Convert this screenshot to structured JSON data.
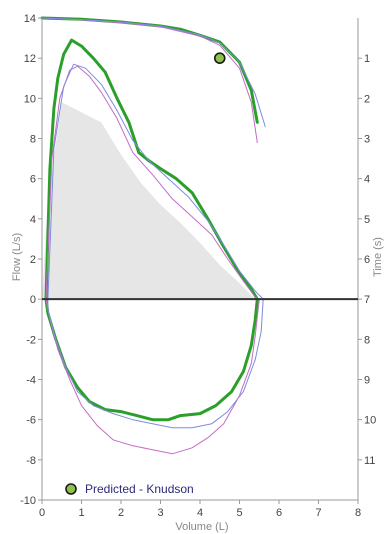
{
  "chart_data": {
    "type": "line",
    "title": "",
    "xlabel": "Volume (L)",
    "ylabel": "Flow (L/s)",
    "y2label": "Time (s)",
    "xlim": [
      0,
      8
    ],
    "ylim": [
      -10,
      14
    ],
    "y2lim": [
      0,
      11
    ],
    "x_ticks": [
      "0",
      "1",
      "2",
      "3",
      "4",
      "5",
      "6",
      "7",
      "8"
    ],
    "y_ticks": [
      "-10",
      "-8",
      "-6",
      "-4",
      "-2",
      "0",
      "2",
      "4",
      "6",
      "8",
      "10",
      "12",
      "14"
    ],
    "y2_ticks": [
      "1",
      "2",
      "3",
      "4",
      "5",
      "6",
      "7",
      "8",
      "9",
      "10",
      "11"
    ],
    "grid": false,
    "legend": {
      "position": "bottom-left",
      "entries": [
        {
          "label": "Predicted - Knudson",
          "color": "#8fc24a"
        }
      ]
    },
    "predicted_area": {
      "color": "#e6e6e6",
      "points": [
        [
          0.0,
          0.0
        ],
        [
          0.15,
          5.0
        ],
        [
          0.5,
          9.8
        ],
        [
          1.0,
          9.3
        ],
        [
          1.5,
          8.8
        ],
        [
          2.0,
          7.2
        ],
        [
          2.5,
          5.8
        ],
        [
          3.0,
          4.7
        ],
        [
          3.5,
          3.8
        ],
        [
          4.0,
          2.8
        ],
        [
          4.5,
          1.7
        ],
        [
          5.0,
          0.8
        ],
        [
          5.4,
          0.0
        ]
      ]
    },
    "predicted_point": {
      "x": 4.5,
      "y": 12.0,
      "color": "#8fc24a"
    },
    "series": [
      {
        "color": "#2aa02a",
        "width": 3,
        "points": [
          [
            0.1,
            0.0
          ],
          [
            0.2,
            6.5
          ],
          [
            0.3,
            9.5
          ],
          [
            0.4,
            11.0
          ],
          [
            0.55,
            12.2
          ],
          [
            0.75,
            12.9
          ],
          [
            1.0,
            12.6
          ],
          [
            1.3,
            12.0
          ],
          [
            1.6,
            11.3
          ],
          [
            1.9,
            10.0
          ],
          [
            2.2,
            8.8
          ],
          [
            2.45,
            7.3
          ],
          [
            2.7,
            6.9
          ],
          [
            3.0,
            6.5
          ],
          [
            3.4,
            6.0
          ],
          [
            3.8,
            5.3
          ],
          [
            4.2,
            4.0
          ],
          [
            4.6,
            2.6
          ],
          [
            5.0,
            1.3
          ],
          [
            5.3,
            0.5
          ],
          [
            5.45,
            0.0
          ],
          [
            5.4,
            -1.0
          ],
          [
            5.3,
            -2.3
          ],
          [
            5.1,
            -3.6
          ],
          [
            4.8,
            -4.6
          ],
          [
            4.4,
            -5.3
          ],
          [
            4.0,
            -5.7
          ],
          [
            3.5,
            -5.8
          ],
          [
            3.2,
            -6.0
          ],
          [
            2.8,
            -6.0
          ],
          [
            2.4,
            -5.8
          ],
          [
            2.0,
            -5.6
          ],
          [
            1.6,
            -5.5
          ],
          [
            1.2,
            -5.1
          ],
          [
            0.9,
            -4.4
          ],
          [
            0.6,
            -3.4
          ],
          [
            0.35,
            -2.0
          ],
          [
            0.15,
            -0.7
          ],
          [
            0.1,
            0.0
          ]
        ]
      },
      {
        "color": "#c46cc4",
        "width": 1,
        "points": [
          [
            0.1,
            0.0
          ],
          [
            0.25,
            7.0
          ],
          [
            0.45,
            10.0
          ],
          [
            0.7,
            11.4
          ],
          [
            0.9,
            11.6
          ],
          [
            1.2,
            11.1
          ],
          [
            1.5,
            10.3
          ],
          [
            1.9,
            9.0
          ],
          [
            2.3,
            7.3
          ],
          [
            2.8,
            6.2
          ],
          [
            3.3,
            5.0
          ],
          [
            3.8,
            4.1
          ],
          [
            4.3,
            3.2
          ],
          [
            4.7,
            2.0
          ],
          [
            5.1,
            0.9
          ],
          [
            5.4,
            0.1
          ],
          [
            5.5,
            0.0
          ],
          [
            5.4,
            -1.8
          ],
          [
            5.3,
            -3.2
          ],
          [
            5.0,
            -4.8
          ],
          [
            4.6,
            -6.2
          ],
          [
            4.2,
            -6.9
          ],
          [
            3.8,
            -7.4
          ],
          [
            3.3,
            -7.7
          ],
          [
            2.8,
            -7.5
          ],
          [
            2.3,
            -7.3
          ],
          [
            1.8,
            -7.0
          ],
          [
            1.4,
            -6.3
          ],
          [
            1.0,
            -5.3
          ],
          [
            0.7,
            -4.0
          ],
          [
            0.4,
            -2.5
          ],
          [
            0.2,
            -1.0
          ],
          [
            0.1,
            0.0
          ]
        ]
      },
      {
        "color": "#7b8ddd",
        "width": 1,
        "points": [
          [
            0.15,
            0.0
          ],
          [
            0.3,
            7.5
          ],
          [
            0.55,
            10.6
          ],
          [
            0.8,
            11.7
          ],
          [
            1.1,
            11.5
          ],
          [
            1.5,
            10.7
          ],
          [
            1.9,
            9.4
          ],
          [
            2.3,
            7.9
          ],
          [
            2.7,
            6.9
          ],
          [
            3.2,
            6.0
          ],
          [
            3.7,
            5.1
          ],
          [
            4.2,
            3.9
          ],
          [
            4.6,
            2.7
          ],
          [
            5.0,
            1.4
          ],
          [
            5.4,
            0.4
          ],
          [
            5.6,
            0.0
          ],
          [
            5.55,
            -1.6
          ],
          [
            5.4,
            -3.0
          ],
          [
            5.1,
            -4.6
          ],
          [
            4.7,
            -5.6
          ],
          [
            4.3,
            -6.2
          ],
          [
            3.8,
            -6.4
          ],
          [
            3.3,
            -6.4
          ],
          [
            2.8,
            -6.2
          ],
          [
            2.3,
            -6.0
          ],
          [
            1.8,
            -5.7
          ],
          [
            1.3,
            -5.3
          ],
          [
            0.9,
            -4.6
          ],
          [
            0.6,
            -3.4
          ],
          [
            0.35,
            -2.0
          ],
          [
            0.15,
            -0.5
          ],
          [
            0.15,
            0.0
          ]
        ]
      }
    ],
    "time_series": [
      {
        "color": "#2aa02a",
        "width": 3,
        "points": [
          [
            0.0,
            0.0
          ],
          [
            1.0,
            0.03
          ],
          [
            2.0,
            0.1
          ],
          [
            3.0,
            0.2
          ],
          [
            3.5,
            0.28
          ],
          [
            4.0,
            0.43
          ],
          [
            4.5,
            0.6
          ],
          [
            5.0,
            1.1
          ],
          [
            5.3,
            1.8
          ],
          [
            5.45,
            2.6
          ]
        ]
      },
      {
        "color": "#c46cc4",
        "width": 1,
        "points": [
          [
            0.0,
            0.0
          ],
          [
            1.0,
            0.05
          ],
          [
            2.0,
            0.12
          ],
          [
            3.0,
            0.22
          ],
          [
            4.0,
            0.45
          ],
          [
            4.5,
            0.68
          ],
          [
            5.0,
            1.25
          ],
          [
            5.3,
            2.1
          ],
          [
            5.45,
            3.1
          ]
        ]
      },
      {
        "color": "#7b8ddd",
        "width": 1,
        "points": [
          [
            0.0,
            0.0
          ],
          [
            1.0,
            0.04
          ],
          [
            2.0,
            0.1
          ],
          [
            3.0,
            0.2
          ],
          [
            4.0,
            0.42
          ],
          [
            4.5,
            0.62
          ],
          [
            5.0,
            1.1
          ],
          [
            5.4,
            1.9
          ],
          [
            5.65,
            2.7
          ]
        ]
      }
    ]
  }
}
